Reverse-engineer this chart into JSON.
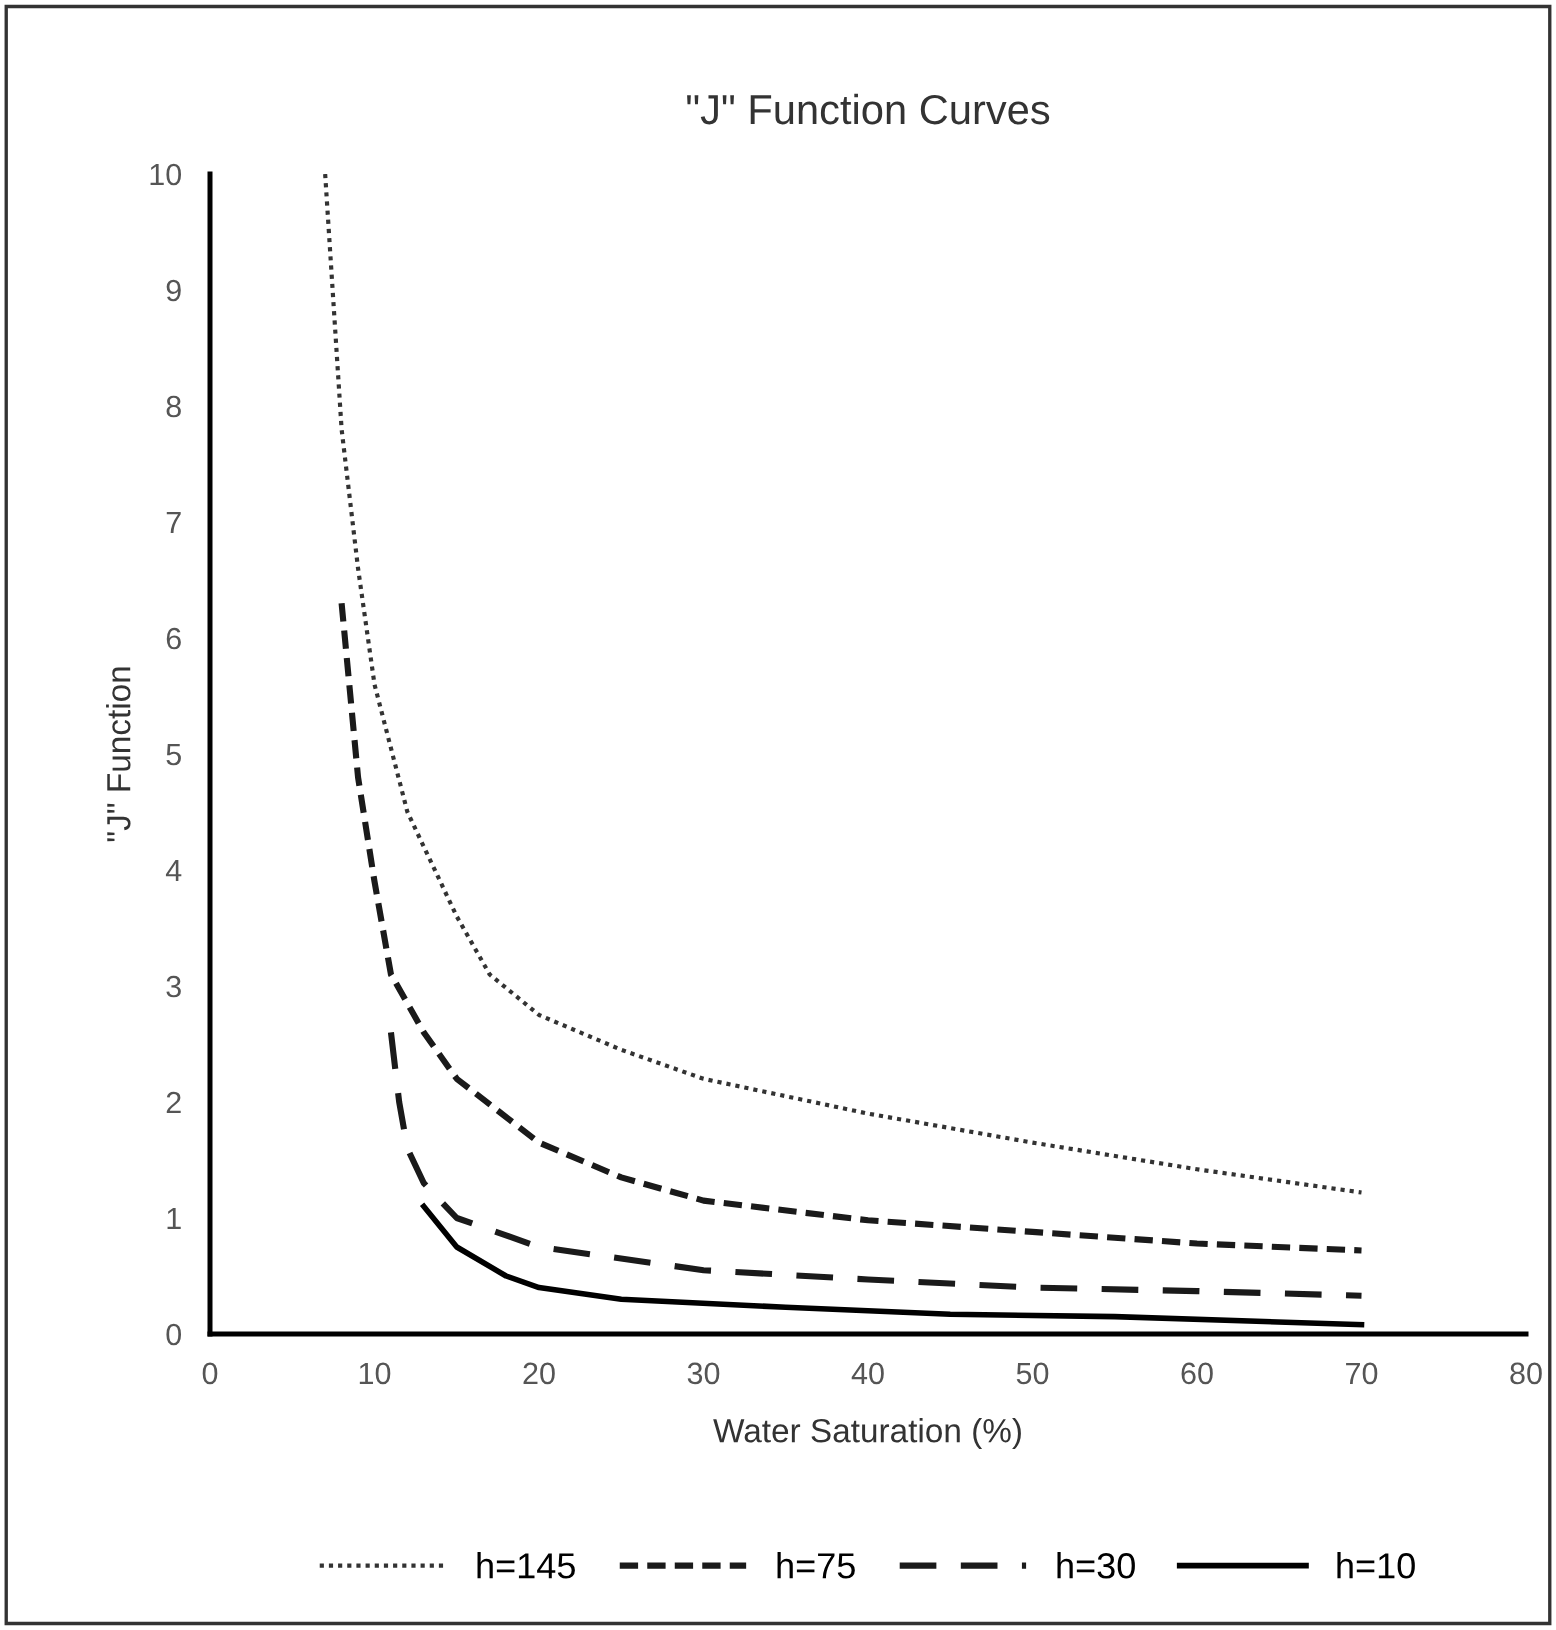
{
  "chart_data": {
    "type": "line",
    "title": "\"J\" Function Curves",
    "xlabel": "Water Saturation (%)",
    "ylabel": "\"J\" Function",
    "xlim": [
      0,
      80
    ],
    "xticks": [
      0,
      10,
      20,
      30,
      40,
      50,
      60,
      70,
      80
    ],
    "ylim": [
      0,
      10
    ],
    "yticks": [
      0,
      1,
      2,
      3,
      4,
      5,
      6,
      7,
      8,
      9,
      10
    ],
    "grid": false,
    "legend": "bottom",
    "marker": "none",
    "series": [
      {
        "name": "h=145",
        "color": "#333333",
        "line_style": "dotted",
        "x": [
          7,
          8,
          9,
          10,
          12,
          15,
          17,
          20,
          25,
          30,
          40,
          50,
          60,
          70
        ],
        "values": [
          10,
          7.8,
          6.6,
          5.6,
          4.5,
          3.6,
          3.1,
          2.75,
          2.45,
          2.2,
          1.9,
          1.65,
          1.42,
          1.22
        ]
      },
      {
        "name": "h=75",
        "color": "#1a1a1a",
        "line_style": "dashed",
        "x": [
          8,
          9,
          10,
          11,
          13,
          15,
          20,
          25,
          30,
          40,
          50,
          60,
          70
        ],
        "values": [
          6.3,
          4.8,
          3.9,
          3.1,
          2.6,
          2.2,
          1.65,
          1.35,
          1.15,
          0.98,
          0.88,
          0.78,
          0.72
        ]
      },
      {
        "name": "h=30",
        "color": "#1a1a1a",
        "line_style": "dashed",
        "x": [
          11,
          11.5,
          12,
          13,
          15,
          20,
          30,
          40,
          50,
          60,
          70
        ],
        "values": [
          2.6,
          2.0,
          1.6,
          1.3,
          1.0,
          0.75,
          0.55,
          0.47,
          0.4,
          0.37,
          0.33
        ]
      },
      {
        "name": "h=10",
        "color": "#000000",
        "line_style": "solid",
        "x": [
          13,
          15,
          18,
          20,
          25,
          35,
          45,
          55,
          70
        ],
        "values": [
          1.1,
          0.75,
          0.5,
          0.4,
          0.3,
          0.23,
          0.17,
          0.15,
          0.08
        ]
      }
    ]
  }
}
